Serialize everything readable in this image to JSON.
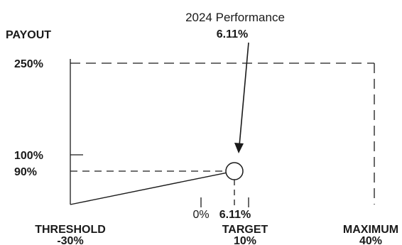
{
  "chart_data": {
    "type": "line",
    "ylabel": "PAYOUT",
    "annotation": {
      "title": "2024 Performance",
      "value": "6.11%"
    },
    "y_ticks": [
      {
        "label": "250%",
        "value": 250
      },
      {
        "label": "100%",
        "value": 100
      },
      {
        "label": "90%",
        "value": 90
      }
    ],
    "x_markers": [
      {
        "label": "0%",
        "value": 0
      },
      {
        "label": "6.11%",
        "value": 6.11
      }
    ],
    "x_points": [
      {
        "name": "THRESHOLD",
        "value_label": "-30%",
        "value": -30
      },
      {
        "name": "TARGET",
        "value_label": "10%",
        "value": 10
      },
      {
        "name": "MAXIMUM",
        "value_label": "40%",
        "value": 40
      }
    ],
    "xlim": [
      -30,
      40
    ],
    "ylim": [
      0,
      250
    ],
    "series": [
      {
        "x": [
          -30,
          6.11
        ],
        "y": [
          0,
          90
        ]
      }
    ],
    "highlight_point": {
      "x": 6.11,
      "y": 90
    },
    "reference_lines": {
      "max_payout": 250,
      "target_payout": 100,
      "actual_payout": 90
    },
    "grid": false,
    "legend": "none"
  }
}
